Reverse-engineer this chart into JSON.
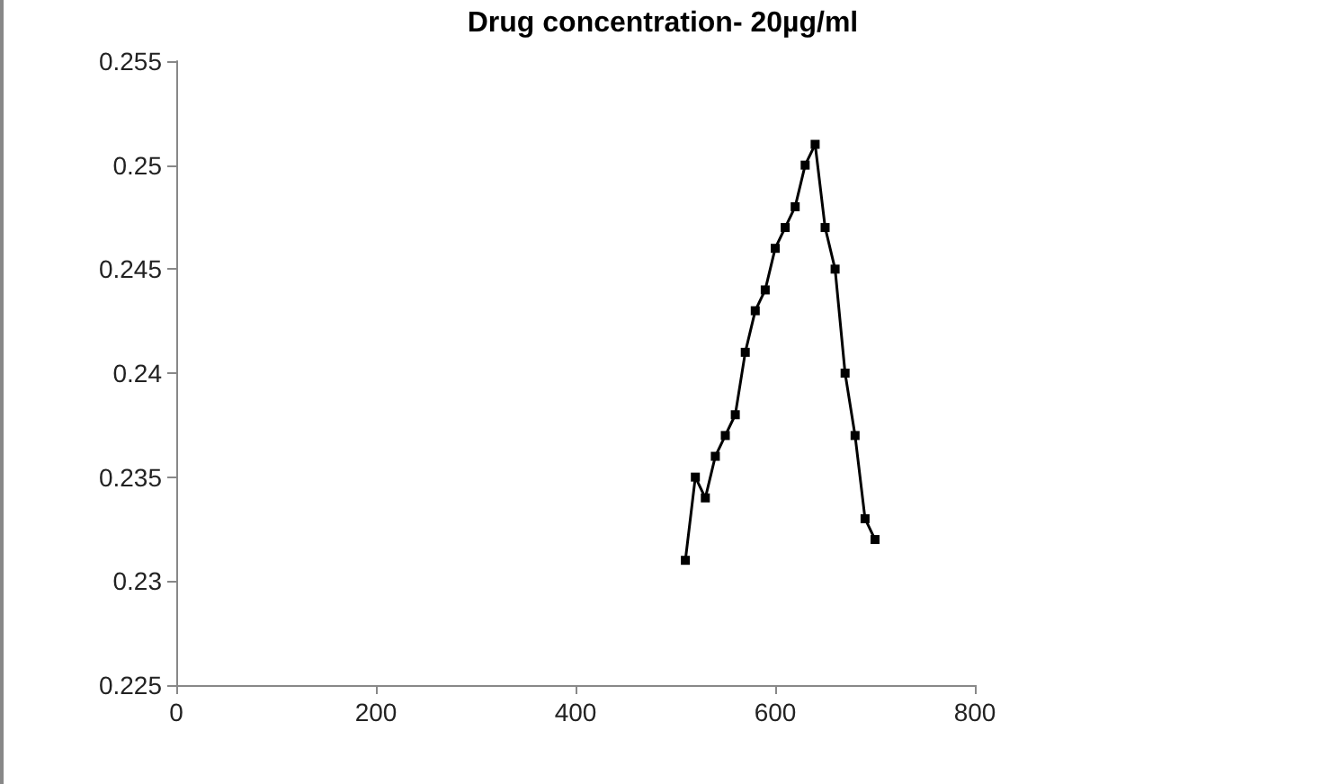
{
  "chart_data": {
    "type": "line",
    "title": "Drug concentration- 20µg/ml",
    "x": [
      510,
      520,
      530,
      540,
      550,
      560,
      570,
      580,
      590,
      600,
      610,
      620,
      630,
      640,
      650,
      660,
      670,
      680,
      690,
      700
    ],
    "series": [
      {
        "color": "#000000",
        "values": [
          0.231,
          0.235,
          0.234,
          0.236,
          0.237,
          0.238,
          0.241,
          0.243,
          0.244,
          0.246,
          0.247,
          0.248,
          0.25,
          0.251,
          0.247,
          0.245,
          0.24,
          0.237,
          0.233,
          0.232
        ]
      }
    ],
    "xlim": [
      0,
      800
    ],
    "xticks": [
      0,
      200,
      400,
      600,
      800
    ],
    "ylim": [
      0.225,
      0.255
    ],
    "yticks": [
      0.225,
      0.23,
      0.235,
      0.24,
      0.245,
      0.25,
      0.255
    ],
    "grid": false,
    "marker": "square",
    "line_style": "solid"
  }
}
